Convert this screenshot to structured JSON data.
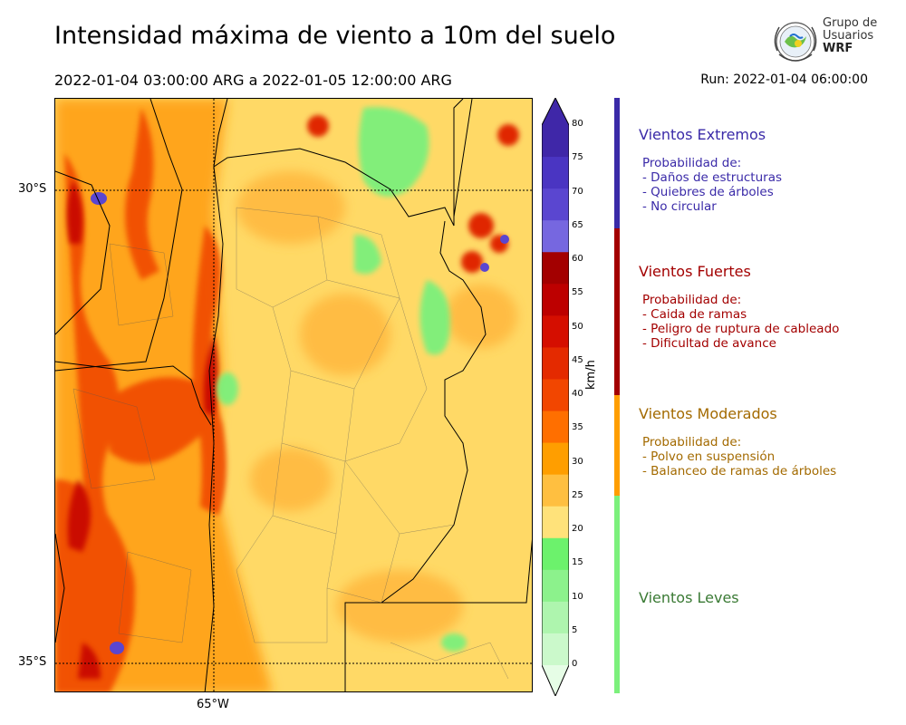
{
  "header": {
    "title": "Intensidad máxima de viento a 10m del suelo",
    "date_range": "2022-01-04 03:00:00 ARG  a  2022-01-05 12:00:00 ARG",
    "run": "Run: 2022-01-04 06:00:00"
  },
  "logo": {
    "line1": "Grupo de",
    "line2": "Usuarios",
    "line3": "WRF"
  },
  "map": {
    "lat_labels": [
      "30°S",
      "35°S"
    ],
    "lon_labels": [
      "65°W"
    ]
  },
  "colorbar": {
    "units": "km/h",
    "ticks": [
      "80",
      "75",
      "70",
      "65",
      "60",
      "55",
      "50",
      "45",
      "40",
      "35",
      "30",
      "25",
      "20",
      "15",
      "10",
      "5",
      "0"
    ],
    "colors": [
      "#3f27a8",
      "#4a35c2",
      "#5a46d0",
      "#7667e0",
      "#a30000",
      "#bd0000",
      "#d50e00",
      "#e42a00",
      "#f24600",
      "#ff6f00",
      "#ff9e00",
      "#ffbf40",
      "#ffe27a",
      "#6cf26c",
      "#8cf28c",
      "#aef5ae",
      "#cbf9cb",
      "#e6fde6"
    ]
  },
  "categories": [
    {
      "title": "Vientos Extremos",
      "color": "#3a2aa8",
      "desc": [
        "Probabilidad de:",
        "- Daños de estructuras",
        "- Quiebres de árboles",
        "- No circular"
      ]
    },
    {
      "title": "Vientos Fuertes",
      "color": "#a30000",
      "desc": [
        "Probabilidad de:",
        "- Caida de ramas",
        "- Peligro de ruptura de cableado",
        "- Dificultad de avance"
      ]
    },
    {
      "title": "Vientos Moderados",
      "color": "#a36a00",
      "desc": [
        "Probabilidad de:",
        "- Polvo en suspensión",
        "- Balanceo de ramas de árboles"
      ]
    },
    {
      "title": "Vientos Leves",
      "color": "#3a7a34",
      "desc": []
    }
  ]
}
